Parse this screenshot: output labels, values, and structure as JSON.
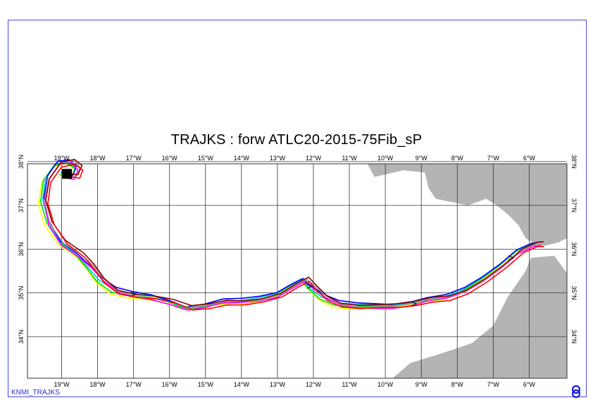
{
  "title": "TRAJKS : forw ATLC20-2015-75Fib_sP",
  "footer_label": "KNMI_TRAJKS",
  "logo": "knmi-logo",
  "colors": {
    "land": "#b4b4b4",
    "grid": "#333333",
    "frame": "#4a4ae0",
    "trajectories": [
      "#ffff00",
      "#00e000",
      "#00c8c8",
      "#0000ff",
      "#ff00ff",
      "#999999",
      "#8b0000",
      "#ff0000"
    ]
  },
  "map": {
    "lon_range": [
      -19.95,
      -4.95
    ],
    "lat_range": [
      33.05,
      37.95
    ],
    "lon_ticks": [
      {
        "lon": -19,
        "label": "19°W"
      },
      {
        "lon": -18,
        "label": "18°W"
      },
      {
        "lon": -17,
        "label": "17°W"
      },
      {
        "lon": -16,
        "label": "16°W"
      },
      {
        "lon": -15,
        "label": "15°W"
      },
      {
        "lon": -14,
        "label": "14°W"
      },
      {
        "lon": -13,
        "label": "13°W"
      },
      {
        "lon": -12,
        "label": "12°W"
      },
      {
        "lon": -11,
        "label": "11°W"
      },
      {
        "lon": -10,
        "label": "10°W"
      },
      {
        "lon": -9,
        "label": "9°W"
      },
      {
        "lon": -8,
        "label": "8°W"
      },
      {
        "lon": -7,
        "label": "7°W"
      },
      {
        "lon": -6,
        "label": "6°W"
      }
    ],
    "lat_ticks": [
      {
        "lat": 38,
        "label": "38°N"
      },
      {
        "lat": 37,
        "label": "37°N"
      },
      {
        "lat": 36,
        "label": "36°N"
      },
      {
        "lat": 35,
        "label": "35°N"
      },
      {
        "lat": 34,
        "label": "34°N"
      }
    ]
  },
  "trajectory": {
    "path": [
      [
        -19.0,
        37.7
      ],
      [
        -18.65,
        37.65
      ],
      [
        -18.55,
        37.85
      ],
      [
        -18.75,
        38.0
      ],
      [
        -19.1,
        37.95
      ],
      [
        -19.4,
        37.6
      ],
      [
        -19.5,
        37.1
      ],
      [
        -19.35,
        36.6
      ],
      [
        -19.0,
        36.15
      ],
      [
        -18.5,
        35.85
      ],
      [
        -18.2,
        35.6
      ],
      [
        -17.9,
        35.3
      ],
      [
        -17.5,
        35.05
      ],
      [
        -17.0,
        34.95
      ],
      [
        -16.5,
        34.9
      ],
      [
        -16.0,
        34.8
      ],
      [
        -15.5,
        34.65
      ],
      [
        -15.0,
        34.7
      ],
      [
        -14.5,
        34.8
      ],
      [
        -14.0,
        34.8
      ],
      [
        -13.5,
        34.85
      ],
      [
        -13.0,
        34.95
      ],
      [
        -12.6,
        35.15
      ],
      [
        -12.25,
        35.3
      ],
      [
        -12.0,
        35.1
      ],
      [
        -11.7,
        34.9
      ],
      [
        -11.3,
        34.75
      ],
      [
        -10.8,
        34.7
      ],
      [
        -10.3,
        34.7
      ],
      [
        -9.8,
        34.7
      ],
      [
        -9.3,
        34.75
      ],
      [
        -8.8,
        34.85
      ],
      [
        -8.3,
        34.9
      ],
      [
        -7.8,
        35.05
      ],
      [
        -7.3,
        35.3
      ],
      [
        -6.8,
        35.6
      ],
      [
        -6.3,
        35.95
      ],
      [
        -5.9,
        36.1
      ],
      [
        -5.7,
        36.12
      ]
    ],
    "start_block": [
      -18.85,
      37.72
    ]
  },
  "land": [
    {
      "name": "iberia",
      "points": [
        [
          -4.95,
          37.95
        ],
        [
          -10.5,
          37.95
        ],
        [
          -10.3,
          37.65
        ],
        [
          -9.5,
          37.8
        ],
        [
          -8.9,
          37.75
        ],
        [
          -8.8,
          37.4
        ],
        [
          -8.6,
          37.15
        ],
        [
          -7.7,
          37.0
        ],
        [
          -7.2,
          37.15
        ],
        [
          -6.9,
          37.0
        ],
        [
          -6.6,
          36.8
        ],
        [
          -6.3,
          36.55
        ],
        [
          -6.1,
          36.25
        ],
        [
          -5.7,
          36.05
        ],
        [
          -5.2,
          36.15
        ],
        [
          -4.95,
          36.25
        ]
      ]
    },
    {
      "name": "africa",
      "points": [
        [
          -5.95,
          35.8
        ],
        [
          -5.3,
          35.85
        ],
        [
          -4.95,
          35.45
        ],
        [
          -4.95,
          33.05
        ],
        [
          -9.8,
          33.05
        ],
        [
          -9.3,
          33.4
        ],
        [
          -8.5,
          33.6
        ],
        [
          -7.6,
          33.85
        ],
        [
          -7.0,
          34.25
        ],
        [
          -6.6,
          34.9
        ],
        [
          -6.1,
          35.5
        ]
      ]
    }
  ]
}
